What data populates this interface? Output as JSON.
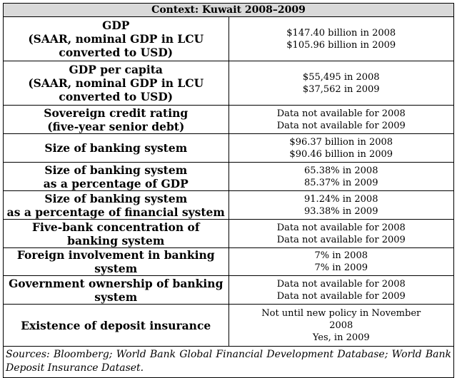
{
  "table": {
    "context": "Context: Kuwait 2008–2009",
    "rows": [
      {
        "label": [
          "GDP",
          "(SAAR, nominal GDP in LCU",
          "converted to USD)"
        ],
        "values": [
          "$147.40 billion in 2008",
          "$105.96 billion in 2009"
        ]
      },
      {
        "label": [
          "GDP per capita",
          "(SAAR, nominal GDP in LCU",
          "converted to USD)"
        ],
        "values": [
          "$55,495 in 2008",
          "$37,562 in 2009"
        ]
      },
      {
        "label": [
          "Sovereign credit rating",
          "(five-year senior debt)"
        ],
        "values": [
          "Data not available for 2008",
          "Data not available for 2009"
        ]
      },
      {
        "label": [
          "Size of banking system"
        ],
        "values": [
          "$96.37 billion in 2008",
          "$90.46 billion in 2009"
        ]
      },
      {
        "label": [
          "Size of banking system",
          "as a percentage of GDP"
        ],
        "values": [
          "65.38% in 2008",
          "85.37% in 2009"
        ]
      },
      {
        "label": [
          "Size of banking system",
          "as a percentage of financial system"
        ],
        "values": [
          "91.24% in 2008",
          "93.38% in 2009"
        ]
      },
      {
        "label": [
          "Five-bank concentration of banking system"
        ],
        "values": [
          "Data not available for 2008",
          "Data not available for 2009"
        ]
      },
      {
        "label": [
          "Foreign involvement in banking system"
        ],
        "values": [
          "7% in 2008",
          "7% in 2009"
        ]
      },
      {
        "label": [
          "Government ownership of banking system"
        ],
        "values": [
          "Data not available for 2008",
          "Data not available for 2009"
        ]
      },
      {
        "label": [
          "Existence of deposit insurance"
        ],
        "values": [
          "Not until new policy in November",
          "2008",
          "Yes, in 2009"
        ]
      }
    ],
    "sources": "Sources: Bloomberg; World Bank Global Financial Development Database; World Bank Deposit Insurance Dataset."
  }
}
